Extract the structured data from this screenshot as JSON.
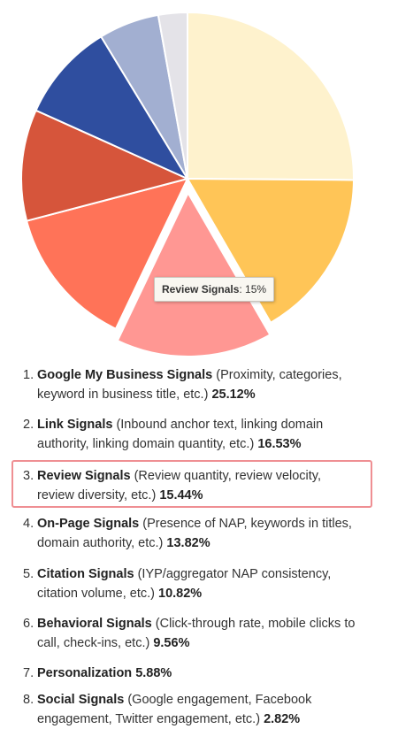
{
  "chart_data": {
    "type": "pie",
    "title": "",
    "slices": [
      {
        "label": "Google My Business Signals",
        "value": 25.12,
        "color": "#fef2cd"
      },
      {
        "label": "Link Signals",
        "value": 16.53,
        "color": "#ffc557"
      },
      {
        "label": "Review Signals",
        "value": 15.44,
        "color": "#ff9793",
        "exploded": true
      },
      {
        "label": "On-Page Signals",
        "value": 13.82,
        "color": "#ff7358"
      },
      {
        "label": "Citation Signals",
        "value": 10.82,
        "color": "#d6553b"
      },
      {
        "label": "Behavioral Signals",
        "value": 9.56,
        "color": "#2f4e9f"
      },
      {
        "label": "Personalization",
        "value": 5.88,
        "color": "#a2afd1"
      },
      {
        "label": "Social Signals",
        "value": 2.82,
        "color": "#e4e3e8"
      }
    ]
  },
  "tooltip": {
    "label": "Review Signals",
    "value": ": 15%"
  },
  "list": [
    {
      "num": "1.",
      "name": "Google My Business Signals",
      "line1": " (Proximity, categories,",
      "line2": "keyword in business title, etc.) ",
      "pct": "25.12%"
    },
    {
      "num": "2.",
      "name": "Link Signals",
      "line1": " (Inbound anchor text, linking domain",
      "line2": "authority, linking domain quantity, etc.) ",
      "pct": "16.53%"
    },
    {
      "num": "3.",
      "name": "Review Signals",
      "line1": " (Review quantity, review velocity,",
      "line2": "review diversity, etc.) ",
      "pct": "15.44%"
    },
    {
      "num": "4.",
      "name": "On-Page Signals",
      "line1": " (Presence of NAP, keywords in titles,",
      "line2": "domain authority, etc.) ",
      "pct": "13.82%"
    },
    {
      "num": "5.",
      "name": "Citation Signals",
      "line1": " (IYP/aggregator NAP consistency,",
      "line2": "citation volume, etc.) ",
      "pct": "10.82%"
    },
    {
      "num": "6.",
      "name": "Behavioral Signals",
      "line1": " (Click-through rate, mobile clicks to",
      "line2": "call, check-ins, etc.) ",
      "pct": "9.56%"
    },
    {
      "num": "7.",
      "name": "Personalization",
      "line1": "  ",
      "line2": "",
      "pct": "5.88%"
    },
    {
      "num": "8.",
      "name": "Social Signals",
      "line1": " (Google engagement, Facebook",
      "line2": "engagement, Twitter engagement, etc.) ",
      "pct": "2.82%"
    }
  ]
}
